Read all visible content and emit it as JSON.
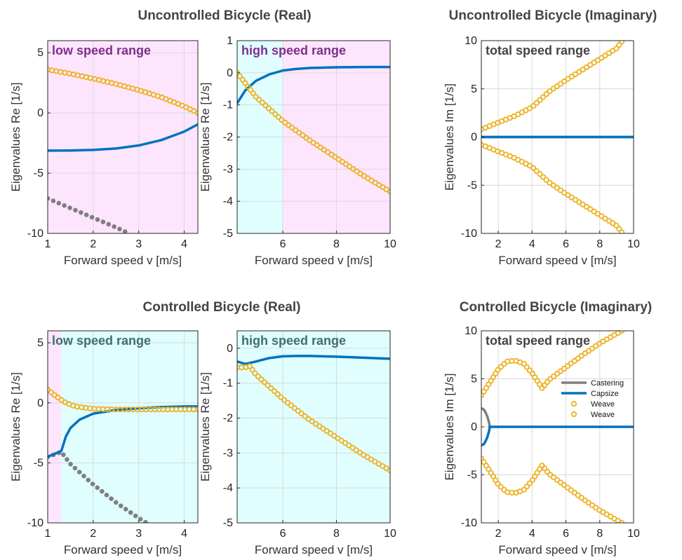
{
  "titles": {
    "top_real": "Uncontrolled Bicycle (Real)",
    "top_imag": "Uncontrolled Bicycle (Imaginary)",
    "bottom_real": "Controlled Bicycle (Real)",
    "bottom_imag": "Controlled Bicycle (Imaginary)"
  },
  "colors": {
    "castering": "#7f7f7f",
    "capsize": "#0072bd",
    "weave": "#edb120",
    "low_region_magenta": "#fde6fd",
    "high_region_cyan": "#e0fefe",
    "region_text_magenta": "#7e2f8e",
    "region_text_cyan": "#3f6f6f",
    "region_text_dark": "#444444"
  },
  "chart_data": [
    {
      "id": "ur_low",
      "type": "line",
      "region_label": "low speed range",
      "xlabel": "Forward speed v [m/s]",
      "ylabel": "Eigenvalues Re [1/s]",
      "xlim": [
        1,
        4.3
      ],
      "ylim": [
        -10,
        6
      ],
      "xticks": [
        1,
        2,
        3,
        4
      ],
      "yticks": [
        -10,
        -5,
        0,
        5
      ],
      "grid": true,
      "shading": [
        {
          "from": 1,
          "to": 4.3,
          "color": "magenta"
        }
      ],
      "series": [
        {
          "role": "castering",
          "style": "dots",
          "x": [
            1,
            1.5,
            2,
            2.5,
            2.7
          ],
          "y": [
            -7.1,
            -7.9,
            -8.7,
            -9.5,
            -9.85
          ]
        },
        {
          "role": "capsize",
          "style": "line",
          "x": [
            1,
            1.5,
            2,
            2.5,
            3,
            3.5,
            4,
            4.3
          ],
          "y": [
            -3.13,
            -3.12,
            -3.07,
            -2.95,
            -2.7,
            -2.25,
            -1.55,
            -0.95
          ]
        },
        {
          "role": "weave",
          "style": "circles",
          "x": [
            1,
            1.5,
            2,
            2.5,
            3,
            3.5,
            4,
            4.3
          ],
          "y": [
            3.6,
            3.25,
            2.85,
            2.4,
            1.9,
            1.3,
            0.55,
            0.0
          ]
        }
      ]
    },
    {
      "id": "ur_high",
      "type": "line",
      "region_label": "high speed range",
      "xlabel": "Forward speed v [m/s]",
      "ylabel": "Eigenvalues Re [1/s]",
      "xlim": [
        4.3,
        10
      ],
      "ylim": [
        -5,
        1
      ],
      "xticks": [
        6,
        8,
        10
      ],
      "yticks": [
        -5,
        -4,
        -3,
        -2,
        -1,
        0,
        1
      ],
      "grid": true,
      "shading": [
        {
          "from": 4.3,
          "to": 6,
          "color": "cyan"
        },
        {
          "from": 6,
          "to": 10,
          "color": "magenta"
        }
      ],
      "series": [
        {
          "role": "capsize",
          "style": "line",
          "x": [
            4.3,
            4.6,
            5,
            5.5,
            6,
            6.5,
            7,
            8,
            9,
            10
          ],
          "y": [
            -0.95,
            -0.55,
            -0.25,
            -0.05,
            0.07,
            0.12,
            0.15,
            0.17,
            0.18,
            0.18
          ]
        },
        {
          "role": "weave",
          "style": "circles",
          "x": [
            4.3,
            5,
            6,
            7,
            8,
            9,
            10
          ],
          "y": [
            0.0,
            -0.75,
            -1.5,
            -2.1,
            -2.65,
            -3.2,
            -3.7
          ]
        }
      ]
    },
    {
      "id": "ui_total",
      "type": "scatter",
      "region_label": "total speed range",
      "xlabel": "Forward speed v [m/s]",
      "ylabel": "Eigenvalues Im [1/s]",
      "xlim": [
        1,
        10
      ],
      "ylim": [
        -10,
        10
      ],
      "xticks": [
        2,
        4,
        6,
        8,
        10
      ],
      "yticks": [
        -10,
        -5,
        0,
        5,
        10
      ],
      "grid": true,
      "series": [
        {
          "role": "castering",
          "style": "line",
          "x": [
            1,
            10
          ],
          "y": [
            0,
            0
          ]
        },
        {
          "role": "capsize",
          "style": "line",
          "x": [
            1,
            10
          ],
          "y": [
            0,
            0
          ]
        },
        {
          "role": "weave",
          "style": "circles",
          "x": [
            1,
            2,
            3,
            4,
            4.5,
            5,
            6,
            7,
            8,
            9,
            9.3
          ],
          "y": [
            0.8,
            1.5,
            2.2,
            3.1,
            3.9,
            4.7,
            5.9,
            7.0,
            8.1,
            9.2,
            9.9
          ]
        },
        {
          "role": "weave",
          "style": "circles",
          "x": [
            1,
            2,
            3,
            4,
            4.5,
            5,
            6,
            7,
            8,
            9,
            9.3
          ],
          "y": [
            -0.8,
            -1.5,
            -2.2,
            -3.1,
            -3.9,
            -4.7,
            -5.9,
            -7.0,
            -8.1,
            -9.2,
            -9.9
          ]
        }
      ]
    },
    {
      "id": "cr_low",
      "type": "line",
      "region_label": "low speed range",
      "xlabel": "Forward speed v [m/s]",
      "ylabel": "Eigenvalues Re [1/s]",
      "xlim": [
        1,
        4.3
      ],
      "ylim": [
        -10,
        6
      ],
      "xticks": [
        1,
        2,
        3,
        4
      ],
      "yticks": [
        -10,
        -5,
        0,
        5
      ],
      "grid": true,
      "shading": [
        {
          "from": 1,
          "to": 1.3,
          "color": "magenta"
        },
        {
          "from": 1.3,
          "to": 4.3,
          "color": "cyan"
        }
      ],
      "series": [
        {
          "role": "castering",
          "style": "dots",
          "x": [
            1,
            1.3,
            1.5,
            2,
            2.5,
            3,
            3.15
          ],
          "y": [
            -4.5,
            -4.1,
            -5.1,
            -6.8,
            -8.3,
            -9.6,
            -9.95
          ]
        },
        {
          "role": "capsize",
          "style": "line",
          "x": [
            1,
            1.3,
            1.4,
            1.5,
            1.7,
            2,
            2.5,
            3,
            3.5,
            4,
            4.3
          ],
          "y": [
            -4.5,
            -4.0,
            -2.8,
            -2.1,
            -1.4,
            -0.9,
            -0.6,
            -0.45,
            -0.35,
            -0.3,
            -0.3
          ]
        },
        {
          "role": "weave",
          "style": "circles",
          "x": [
            1,
            1.2,
            1.4,
            1.6,
            2,
            2.5,
            3,
            3.5,
            4,
            4.3
          ],
          "y": [
            1.1,
            0.5,
            0.0,
            -0.3,
            -0.5,
            -0.55,
            -0.55,
            -0.55,
            -0.55,
            -0.55
          ]
        }
      ]
    },
    {
      "id": "cr_high",
      "type": "line",
      "region_label": "high speed range",
      "xlabel": "Forward speed v [m/s]",
      "ylabel": "Eigenvalues Re [1/s]",
      "xlim": [
        4.3,
        10
      ],
      "ylim": [
        -5,
        0.5
      ],
      "xticks": [
        6,
        8,
        10
      ],
      "yticks": [
        -5,
        -4,
        -3,
        -2,
        -1,
        0
      ],
      "grid": true,
      "shading": [
        {
          "from": 4.3,
          "to": 10,
          "color": "cyan"
        }
      ],
      "series": [
        {
          "role": "capsize",
          "style": "line",
          "x": [
            4.3,
            4.6,
            5,
            5.5,
            6,
            6.5,
            7,
            8,
            9,
            10
          ],
          "y": [
            -0.38,
            -0.45,
            -0.38,
            -0.28,
            -0.23,
            -0.22,
            -0.22,
            -0.24,
            -0.27,
            -0.3
          ]
        },
        {
          "role": "weave",
          "style": "circles",
          "x": [
            4.3,
            4.6,
            4.75,
            5,
            6,
            7,
            8,
            9,
            10
          ],
          "y": [
            -0.55,
            -0.55,
            -0.5,
            -0.75,
            -1.45,
            -2.05,
            -2.55,
            -3.05,
            -3.5
          ]
        }
      ]
    },
    {
      "id": "ci_total",
      "type": "scatter",
      "region_label": "total speed range",
      "xlabel": "Forward speed v [m/s]",
      "ylabel": "Eigenvalues Im [1/s]",
      "xlim": [
        1,
        10
      ],
      "ylim": [
        -10,
        10
      ],
      "xticks": [
        2,
        4,
        6,
        8,
        10
      ],
      "yticks": [
        -10,
        -5,
        0,
        5,
        10
      ],
      "grid": true,
      "legend": {
        "location": "right-middle",
        "entries": [
          {
            "label": "Castering",
            "role": "castering",
            "style": "line"
          },
          {
            "label": "Capsize",
            "role": "capsize",
            "style": "line"
          },
          {
            "label": "Weave",
            "role": "weave",
            "style": "circles"
          },
          {
            "label": "Weave",
            "role": "weave",
            "style": "circles"
          }
        ]
      },
      "series": [
        {
          "role": "castering",
          "style": "line",
          "x": [
            1.05,
            1.15,
            1.25,
            1.35,
            1.45,
            1.5
          ],
          "y": [
            1.9,
            1.8,
            1.5,
            1.1,
            0.5,
            0.0
          ]
        },
        {
          "role": "capsize",
          "style": "line",
          "x": [
            1.05,
            1.15,
            1.25,
            1.35,
            1.45,
            1.5
          ],
          "y": [
            -1.9,
            -1.8,
            -1.5,
            -1.1,
            -0.5,
            0.0
          ]
        },
        {
          "role": "capsize",
          "style": "line",
          "x": [
            1.5,
            10
          ],
          "y": [
            0,
            0
          ]
        },
        {
          "role": "weave",
          "style": "circles",
          "x": [
            1,
            1.5,
            2,
            2.5,
            3,
            3.5,
            4,
            4.3,
            4.6,
            5,
            6,
            7,
            8,
            9,
            9.3
          ],
          "y": [
            3.3,
            4.6,
            6.0,
            6.8,
            6.9,
            6.6,
            5.6,
            4.8,
            4.0,
            4.9,
            6.2,
            7.5,
            8.7,
            9.7,
            10.0
          ]
        },
        {
          "role": "weave",
          "style": "circles",
          "x": [
            1,
            1.5,
            2,
            2.5,
            3,
            3.5,
            4,
            4.3,
            4.6,
            5,
            6,
            7,
            8,
            9,
            9.3
          ],
          "y": [
            -3.3,
            -4.6,
            -6.0,
            -6.8,
            -6.9,
            -6.6,
            -5.6,
            -4.8,
            -4.0,
            -4.9,
            -6.2,
            -7.5,
            -8.7,
            -9.7,
            -10.0
          ]
        }
      ]
    }
  ]
}
